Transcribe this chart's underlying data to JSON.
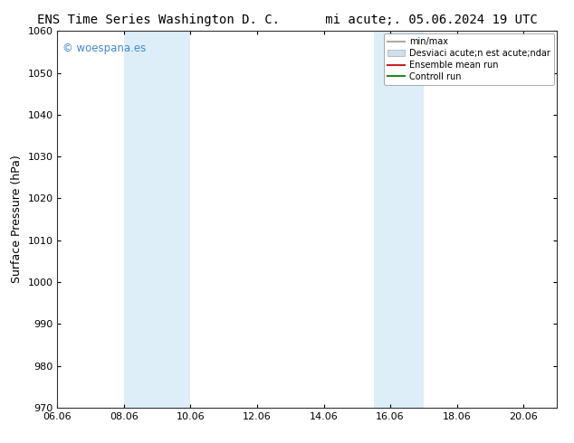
{
  "title_left": "ENS Time Series Washington D. C.",
  "title_right": "mi acute;. 05.06.2024 19 UTC",
  "ylabel": "Surface Pressure (hPa)",
  "ylim": [
    970,
    1060
  ],
  "yticks": [
    970,
    980,
    990,
    1000,
    1010,
    1020,
    1030,
    1040,
    1050,
    1060
  ],
  "xlim": [
    6.06,
    21.06
  ],
  "xticks": [
    6.06,
    8.06,
    10.06,
    12.06,
    14.06,
    16.06,
    18.06,
    20.06
  ],
  "xticklabels": [
    "06.06",
    "08.06",
    "10.06",
    "12.06",
    "14.06",
    "16.06",
    "18.06",
    "20.06"
  ],
  "bg_color": "#ffffff",
  "shaded_bands": [
    {
      "xmin": 8.06,
      "xmax": 10.06,
      "color": "#ddeef8"
    },
    {
      "xmin": 15.56,
      "xmax": 17.06,
      "color": "#ddeef8"
    }
  ],
  "watermark_text": "© woespana.es",
  "watermark_color": "#4488cc",
  "legend_entries": [
    {
      "label": "min/max",
      "color": "#aaaaaa",
      "lw": 1.5,
      "type": "line"
    },
    {
      "label": "Desviaci acute;n est acute;ndar",
      "color": "#cce0f0",
      "type": "patch"
    },
    {
      "label": "Ensemble mean run",
      "color": "#cc2222",
      "lw": 1.5,
      "type": "line"
    },
    {
      "label": "Controll run",
      "color": "#228822",
      "lw": 1.5,
      "type": "line"
    }
  ]
}
